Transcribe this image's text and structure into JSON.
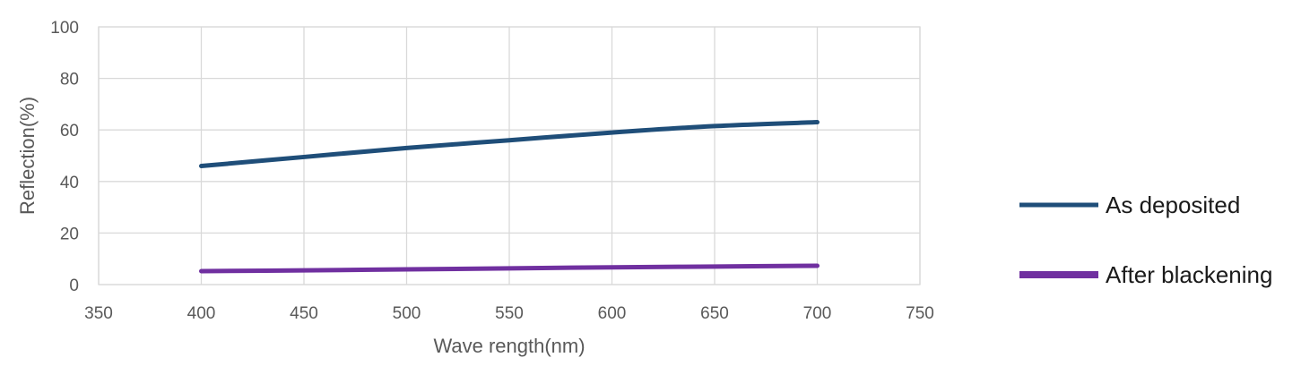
{
  "chart_data": {
    "type": "line",
    "title": "",
    "xlabel": "Wave rength(nm)",
    "ylabel": "Reflection(%)",
    "xlim": [
      350,
      750
    ],
    "ylim": [
      0,
      100
    ],
    "x_ticks": [
      350,
      400,
      450,
      500,
      550,
      600,
      650,
      700,
      750
    ],
    "y_ticks": [
      0,
      20,
      40,
      60,
      80,
      100
    ],
    "grid": true,
    "legend_position": "right",
    "series": [
      {
        "name": "As deposited",
        "color": "#1f4e79",
        "x": [
          400,
          450,
          500,
          550,
          600,
          650,
          700
        ],
        "y": [
          46,
          49.5,
          53,
          56,
          59,
          61.5,
          63
        ]
      },
      {
        "name": "After blackening",
        "color": "#7030a0",
        "x": [
          400,
          450,
          500,
          550,
          600,
          650,
          700
        ],
        "y": [
          5.2,
          5.5,
          5.9,
          6.3,
          6.7,
          7.0,
          7.3
        ]
      }
    ]
  }
}
